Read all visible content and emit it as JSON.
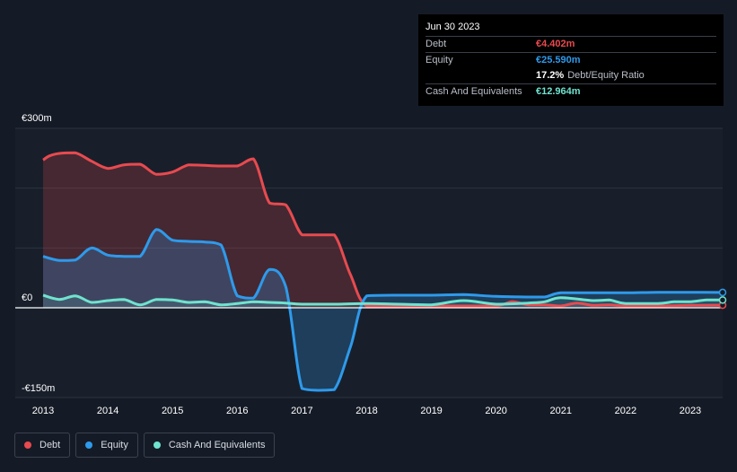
{
  "tooltip": {
    "date": "Jun 30 2023",
    "rows": [
      {
        "label": "Debt",
        "value": "€4.402m",
        "color": "#e84a4f"
      },
      {
        "label": "Equity",
        "value": "€25.590m",
        "color": "#2e9aeb"
      },
      {
        "label": "",
        "value": "17.2%",
        "extra": "Debt/Equity Ratio",
        "color": "#ffffff"
      },
      {
        "label": "Cash And Equivalents",
        "value": "€12.964m",
        "color": "#6fe3cf"
      }
    ]
  },
  "legend": [
    {
      "label": "Debt",
      "color": "#e84a4f"
    },
    {
      "label": "Equity",
      "color": "#2e9aeb"
    },
    {
      "label": "Cash And Equivalents",
      "color": "#6fe3cf"
    }
  ],
  "chart_data": {
    "type": "area",
    "x_ticks": [
      "2013",
      "2014",
      "2015",
      "2016",
      "2017",
      "2018",
      "2019",
      "2020",
      "2021",
      "2022",
      "2023"
    ],
    "y_labels": [
      "€300m",
      "€0",
      "-€150m"
    ],
    "ylim": [
      -150,
      300
    ],
    "xlim": [
      2013.0,
      2023.5
    ],
    "grid": true,
    "legend_position": "bottom-left",
    "series": [
      {
        "name": "Debt",
        "color": "#e84a4f",
        "points": [
          [
            2013.0,
            247
          ],
          [
            2013.1,
            254
          ],
          [
            2013.25,
            258
          ],
          [
            2013.5,
            259
          ],
          [
            2013.75,
            245
          ],
          [
            2014.0,
            233
          ],
          [
            2014.25,
            239
          ],
          [
            2014.5,
            240
          ],
          [
            2014.75,
            223
          ],
          [
            2015.0,
            227
          ],
          [
            2015.25,
            239
          ],
          [
            2015.5,
            238
          ],
          [
            2015.75,
            237
          ],
          [
            2016.0,
            237
          ],
          [
            2016.25,
            249
          ],
          [
            2016.5,
            175
          ],
          [
            2016.75,
            172
          ],
          [
            2017.0,
            122
          ],
          [
            2017.25,
            122
          ],
          [
            2017.5,
            122
          ],
          [
            2017.75,
            55
          ],
          [
            2018.0,
            3
          ],
          [
            2018.5,
            3
          ],
          [
            2019.0,
            3
          ],
          [
            2019.5,
            3
          ],
          [
            2020.0,
            3
          ],
          [
            2020.25,
            10
          ],
          [
            2020.5,
            5
          ],
          [
            2020.75,
            5
          ],
          [
            2021.0,
            3
          ],
          [
            2021.25,
            8
          ],
          [
            2021.5,
            4
          ],
          [
            2021.75,
            5
          ],
          [
            2022.0,
            3
          ],
          [
            2022.5,
            3
          ],
          [
            2023.0,
            4
          ],
          [
            2023.5,
            4.4
          ]
        ]
      },
      {
        "name": "Equity",
        "color": "#2e9aeb",
        "points": [
          [
            2013.0,
            86
          ],
          [
            2013.25,
            79
          ],
          [
            2013.5,
            80
          ],
          [
            2013.75,
            100
          ],
          [
            2014.0,
            88
          ],
          [
            2014.25,
            86
          ],
          [
            2014.5,
            86
          ],
          [
            2014.75,
            131
          ],
          [
            2015.0,
            113
          ],
          [
            2015.25,
            111
          ],
          [
            2015.5,
            110
          ],
          [
            2015.75,
            105
          ],
          [
            2016.0,
            20
          ],
          [
            2016.25,
            16
          ],
          [
            2016.5,
            64
          ],
          [
            2016.75,
            35
          ],
          [
            2017.0,
            -135
          ],
          [
            2017.25,
            -138
          ],
          [
            2017.5,
            -137
          ],
          [
            2017.75,
            -65
          ],
          [
            2018.0,
            20
          ],
          [
            2018.5,
            21
          ],
          [
            2019.0,
            21
          ],
          [
            2019.5,
            22
          ],
          [
            2020.0,
            19
          ],
          [
            2020.5,
            18
          ],
          [
            2020.75,
            18
          ],
          [
            2021.0,
            25
          ],
          [
            2021.5,
            25
          ],
          [
            2022.0,
            25
          ],
          [
            2022.5,
            26
          ],
          [
            2023.0,
            26
          ],
          [
            2023.5,
            25.6
          ]
        ]
      },
      {
        "name": "Cash And Equivalents",
        "color": "#6fe3cf",
        "points": [
          [
            2013.0,
            21
          ],
          [
            2013.25,
            14
          ],
          [
            2013.5,
            20
          ],
          [
            2013.75,
            9
          ],
          [
            2014.0,
            12
          ],
          [
            2014.25,
            14
          ],
          [
            2014.5,
            5
          ],
          [
            2014.75,
            14
          ],
          [
            2015.0,
            13
          ],
          [
            2015.25,
            9
          ],
          [
            2015.5,
            10
          ],
          [
            2015.75,
            5
          ],
          [
            2016.0,
            7
          ],
          [
            2016.25,
            10
          ],
          [
            2016.5,
            9
          ],
          [
            2016.75,
            8
          ],
          [
            2017.0,
            6
          ],
          [
            2017.5,
            6
          ],
          [
            2018.0,
            7
          ],
          [
            2018.5,
            6
          ],
          [
            2019.0,
            5
          ],
          [
            2019.5,
            12
          ],
          [
            2020.0,
            6
          ],
          [
            2020.5,
            8
          ],
          [
            2020.75,
            10
          ],
          [
            2021.0,
            17
          ],
          [
            2021.5,
            12
          ],
          [
            2021.75,
            13
          ],
          [
            2022.0,
            7
          ],
          [
            2022.5,
            7
          ],
          [
            2022.75,
            10
          ],
          [
            2023.0,
            10
          ],
          [
            2023.25,
            13
          ],
          [
            2023.5,
            13
          ]
        ]
      }
    ]
  }
}
